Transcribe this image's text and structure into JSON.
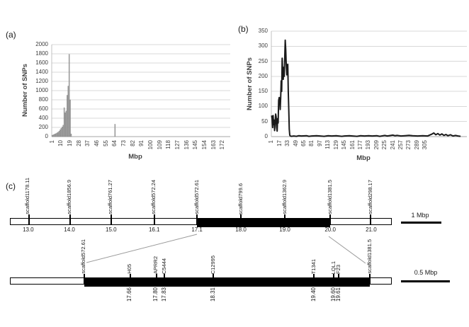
{
  "figure": {
    "panel_a_label": "(a)",
    "panel_b_label": "(b)",
    "panel_c_label": "(c)"
  },
  "chart_data": [
    {
      "id": "a",
      "type": "bar",
      "title": "",
      "xlabel": "Mbp",
      "ylabel": "Number of SNPs",
      "ylim": [
        0,
        2000
      ],
      "ytick_step": 200,
      "grid": true,
      "legend": "none",
      "bar_color": "#a0a0a0",
      "bar_edge_color": "#7a7a7a",
      "x_categories_total": 179,
      "xtick_start": 1,
      "xtick_interval": 9,
      "xtick_labels": [
        "1",
        "10",
        "19",
        "28",
        "37",
        "46",
        "55",
        "64",
        "73",
        "82",
        "91",
        "100",
        "109",
        "118",
        "127",
        "136",
        "145",
        "154",
        "163",
        "172"
      ],
      "bars": [
        [
          1,
          30
        ],
        [
          2,
          40
        ],
        [
          3,
          50
        ],
        [
          4,
          60
        ],
        [
          5,
          70
        ],
        [
          6,
          85
        ],
        [
          7,
          100
        ],
        [
          8,
          120
        ],
        [
          9,
          150
        ],
        [
          10,
          180
        ],
        [
          11,
          210
        ],
        [
          12,
          250
        ],
        [
          13,
          630
        ],
        [
          14,
          520
        ],
        [
          15,
          560
        ],
        [
          16,
          900
        ],
        [
          17,
          1100
        ],
        [
          18,
          1790
        ],
        [
          19,
          800
        ],
        [
          20,
          60
        ],
        [
          64,
          270
        ]
      ]
    },
    {
      "id": "b",
      "type": "line",
      "title": "",
      "xlabel": "Mbp",
      "ylabel": "Number of SNPs",
      "ylim": [
        0,
        350
      ],
      "ytick_step": 50,
      "grid": true,
      "legend": "none",
      "line_color": "#1a1a1a",
      "x_categories_total": 387,
      "xtick_start": 1,
      "xtick_interval": 16,
      "xtick_labels": [
        "1",
        "17",
        "33",
        "49",
        "65",
        "81",
        "97",
        "113",
        "129",
        "145",
        "161",
        "177",
        "193",
        "209",
        "225",
        "241",
        "257",
        "273",
        "289",
        "305"
      ],
      "points": [
        [
          1,
          70
        ],
        [
          2,
          60
        ],
        [
          3,
          30
        ],
        [
          4,
          70
        ],
        [
          5,
          40
        ],
        [
          6,
          55
        ],
        [
          7,
          20
        ],
        [
          8,
          45
        ],
        [
          9,
          75
        ],
        [
          10,
          65
        ],
        [
          11,
          30
        ],
        [
          12,
          18
        ],
        [
          13,
          60
        ],
        [
          14,
          45
        ],
        [
          15,
          120
        ],
        [
          16,
          130
        ],
        [
          17,
          125
        ],
        [
          18,
          90
        ],
        [
          19,
          130
        ],
        [
          20,
          185
        ],
        [
          21,
          150
        ],
        [
          22,
          260
        ],
        [
          23,
          210
        ],
        [
          24,
          190
        ],
        [
          25,
          230
        ],
        [
          26,
          200
        ],
        [
          27,
          260
        ],
        [
          28,
          320
        ],
        [
          29,
          290
        ],
        [
          30,
          240
        ],
        [
          31,
          205
        ],
        [
          32,
          235
        ],
        [
          33,
          240
        ],
        [
          34,
          150
        ],
        [
          35,
          90
        ],
        [
          36,
          25
        ],
        [
          37,
          5
        ],
        [
          38,
          2
        ],
        [
          40,
          1
        ],
        [
          45,
          2
        ],
        [
          50,
          1
        ],
        [
          55,
          3
        ],
        [
          60,
          2
        ],
        [
          70,
          3
        ],
        [
          75,
          1
        ],
        [
          80,
          2
        ],
        [
          90,
          3
        ],
        [
          97,
          2
        ],
        [
          105,
          1
        ],
        [
          113,
          3
        ],
        [
          120,
          2
        ],
        [
          129,
          3
        ],
        [
          140,
          1
        ],
        [
          145,
          2
        ],
        [
          155,
          3
        ],
        [
          161,
          2
        ],
        [
          170,
          1
        ],
        [
          177,
          3
        ],
        [
          185,
          2
        ],
        [
          193,
          3
        ],
        [
          200,
          2
        ],
        [
          209,
          3
        ],
        [
          215,
          1
        ],
        [
          225,
          4
        ],
        [
          230,
          2
        ],
        [
          241,
          5
        ],
        [
          245,
          3
        ],
        [
          250,
          4
        ],
        [
          257,
          2
        ],
        [
          265,
          3
        ],
        [
          273,
          4
        ],
        [
          280,
          3
        ],
        [
          290,
          2
        ],
        [
          300,
          3
        ],
        [
          310,
          2
        ],
        [
          318,
          8
        ],
        [
          322,
          12
        ],
        [
          326,
          6
        ],
        [
          330,
          10
        ],
        [
          334,
          5
        ],
        [
          338,
          9
        ],
        [
          342,
          4
        ],
        [
          346,
          7
        ],
        [
          350,
          3
        ],
        [
          355,
          6
        ],
        [
          360,
          2
        ],
        [
          365,
          4
        ],
        [
          370,
          2
        ],
        [
          375,
          1
        ]
      ]
    }
  ],
  "map": {
    "top_track": {
      "scale_label": "1 Mbp",
      "filled_region_pct": [
        49.0,
        83.9
      ],
      "markers": [
        {
          "name": "scaffold1178.11",
          "pct": 4.8,
          "pos": "13.0"
        },
        {
          "name": "scaffold1856.9",
          "pct": 15.6,
          "pos": "14.0"
        },
        {
          "name": "scaffold761.27",
          "pct": 26.5,
          "pos": "15.0"
        },
        {
          "name": "scaffold572.24",
          "pct": 37.8,
          "pos": "16.1"
        },
        {
          "name": "scaffold572.61",
          "pct": 49.0,
          "pos": "17.1"
        },
        {
          "name": "scaffold799.6",
          "pct": 60.5,
          "pos": "18.0"
        },
        {
          "name": "scaffold1362.9",
          "pct": 72.0,
          "pos": "19.0"
        },
        {
          "name": "scaffold1381.5",
          "pct": 83.9,
          "pos": "20.0"
        },
        {
          "name": "scaffold298.17",
          "pct": 94.6,
          "pos": "21.0"
        }
      ]
    },
    "bottom_track": {
      "scale_label": "0.5 Mbp",
      "filled_region_pct": [
        19.3,
        94.4
      ],
      "markers": [
        {
          "name": "scaffold572.61",
          "pct": 19.3,
          "pos": ""
        },
        {
          "name": "H05",
          "pct": 31.4,
          "pos": "17.66"
        },
        {
          "name": "APRR2",
          "pct": 38.3,
          "pos": "17.80"
        },
        {
          "name": "C5444",
          "pct": 40.5,
          "pos": "17.83"
        },
        {
          "name": "C12995",
          "pct": 53.3,
          "pos": "18.31"
        },
        {
          "name": "T1341",
          "pct": 79.7,
          "pos": "19.40"
        },
        {
          "name": "LQL1",
          "pct": 84.9,
          "pos": "19.60"
        },
        {
          "name": "F23",
          "pct": 86.2,
          "pos": "19.61"
        },
        {
          "name": "scaffold1381.5",
          "pct": 94.4,
          "pos": ""
        }
      ]
    }
  }
}
